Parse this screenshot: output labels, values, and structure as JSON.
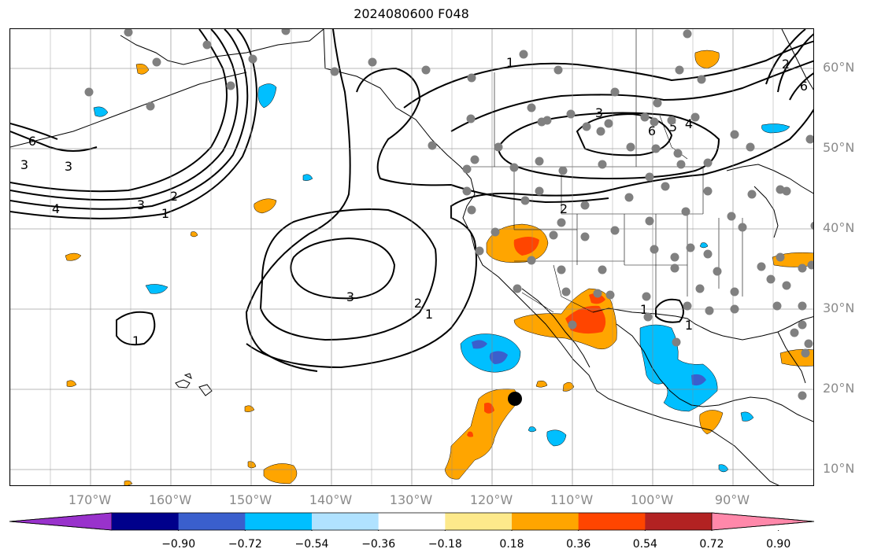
{
  "title": "2024080600 F048",
  "lon_labels": [
    {
      "text": "170°W",
      "lon": -170
    },
    {
      "text": "160°W",
      "lon": -160
    },
    {
      "text": "150°W",
      "lon": -150
    },
    {
      "text": "140°W",
      "lon": -140
    },
    {
      "text": "130°W",
      "lon": -130
    },
    {
      "text": "120°W",
      "lon": -120
    },
    {
      "text": "110°W",
      "lon": -110
    },
    {
      "text": "100°W",
      "lon": -100
    },
    {
      "text": "90°W",
      "lon": -90
    }
  ],
  "lat_labels": [
    {
      "text": "60°N",
      "lat": 60
    },
    {
      "text": "50°N",
      "lat": 50
    },
    {
      "text": "40°N",
      "lat": 40
    },
    {
      "text": "30°N",
      "lat": 30
    },
    {
      "text": "20°N",
      "lat": 20
    },
    {
      "text": "10°N",
      "lat": 10
    }
  ],
  "colorbar": {
    "colors": [
      "#9932cc",
      "#00008b",
      "#3a5fcd",
      "#00bfff",
      "#b0e2ff",
      "#ffffff",
      "#fde98b",
      "#ffa500",
      "#ff4500",
      "#b22222",
      "#ff88aa"
    ],
    "tick_labels": [
      "−0.90",
      "−0.72",
      "−0.54",
      "−0.36",
      "−0.18",
      "0.18",
      "0.36",
      "0.54",
      "0.72",
      "0.90"
    ]
  },
  "contour_labels": [
    "1",
    "2",
    "3",
    "4",
    "5",
    "6"
  ],
  "station_marker_color": "#808080"
}
